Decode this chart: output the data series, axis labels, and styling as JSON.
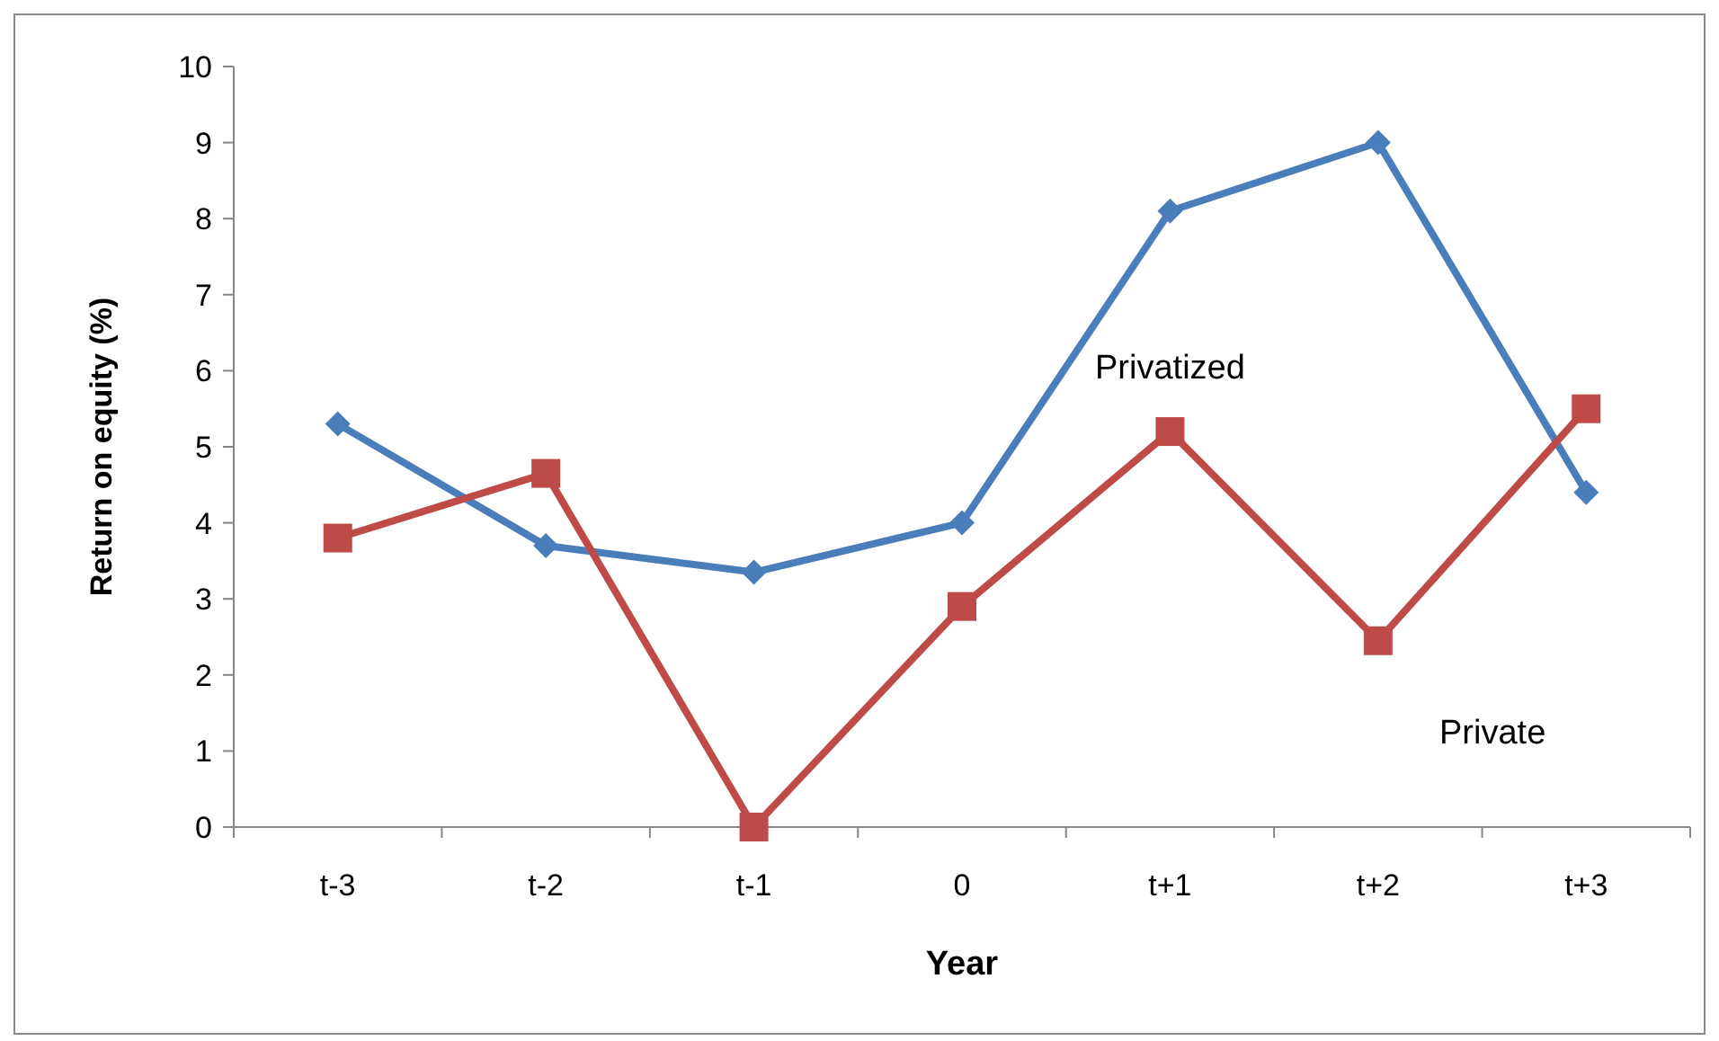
{
  "chart_data": {
    "type": "line",
    "xlabel": "Year",
    "ylabel": "Return on equity (%)",
    "categories": [
      "t-3",
      "t-2",
      "t-1",
      "0",
      "t+1",
      "t+2",
      "t+3"
    ],
    "series": [
      {
        "name": "Privatized",
        "color": "#4a7ebb",
        "marker": "diamond",
        "values": [
          5.3,
          3.7,
          3.35,
          4.0,
          8.1,
          9.0,
          4.4
        ]
      },
      {
        "name": "Private",
        "color": "#be4b48",
        "marker": "square",
        "values": [
          3.8,
          4.65,
          0,
          2.9,
          5.2,
          2.45,
          5.5
        ]
      }
    ],
    "ylim": [
      0,
      10
    ],
    "yticks": [
      0,
      1,
      2,
      3,
      4,
      5,
      6,
      7,
      8,
      9,
      10
    ],
    "grid": false,
    "line_style": "solid"
  }
}
